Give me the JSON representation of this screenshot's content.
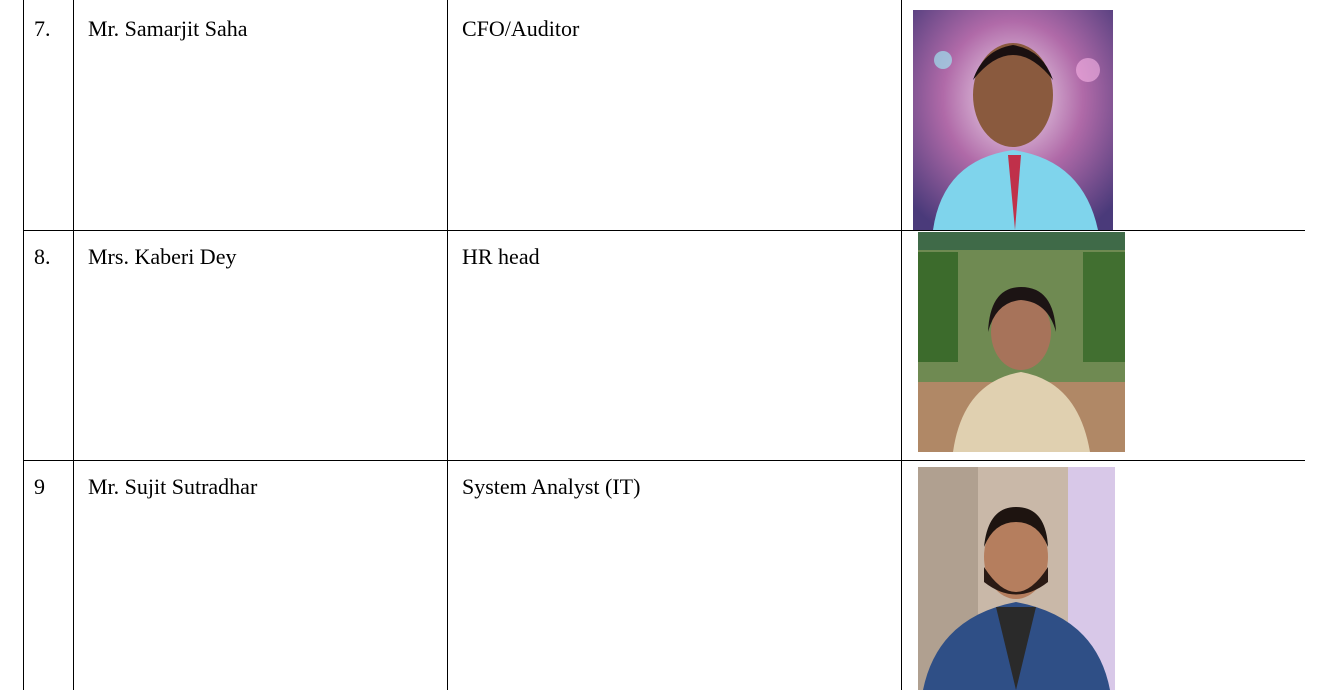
{
  "table": {
    "rows": [
      [
        "7.",
        "Mr. Samarjit Saha",
        "CFO/Auditor"
      ],
      [
        "8.",
        "Mrs. Kaberi Dey",
        "HR head"
      ],
      [
        "9",
        "Mr. Sujit Sutradhar",
        "System Analyst (IT)"
      ]
    ]
  }
}
